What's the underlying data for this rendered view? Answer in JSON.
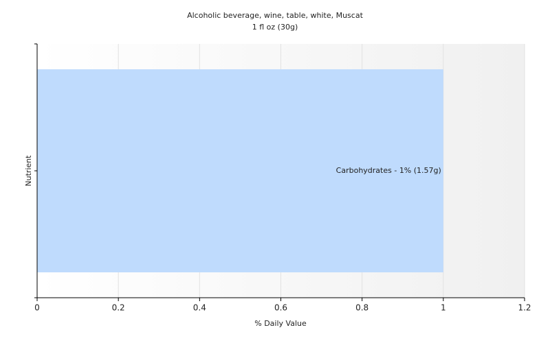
{
  "chart_data": {
    "type": "hbar",
    "title": "Alcoholic beverage, wine, table, white, Muscat",
    "subtitle": "1 fl oz (30g)",
    "x_label": "% Daily Value",
    "y_label": "Nutrient",
    "categories": [
      null
    ],
    "values": [
      1
    ],
    "value_labels": [
      "Carbohydrates - 1% (1.57g)"
    ],
    "color": "#bfdbfd",
    "xlim": [
      0,
      1.2
    ],
    "xticks": [
      0,
      0.2,
      0.4,
      0.6,
      0.8,
      1,
      1.2
    ],
    "grid": true
  }
}
